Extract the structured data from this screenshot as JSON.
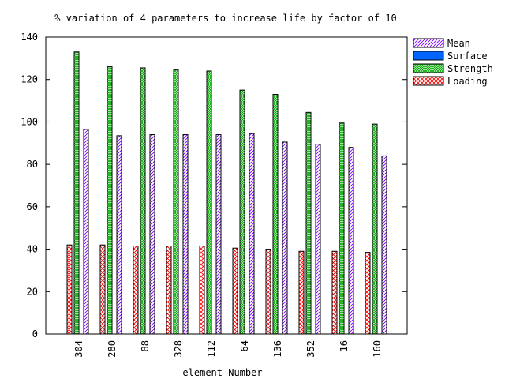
{
  "chart_data": {
    "type": "bar",
    "title": "% variation of 4 parameters to increase life by factor of 10",
    "xlabel": "element Number",
    "ylabel": "",
    "ylim": [
      0,
      140
    ],
    "yticks": [
      0,
      20,
      40,
      60,
      80,
      100,
      120,
      140
    ],
    "grid": false,
    "legend_position": "outside-right",
    "categories": [
      "304",
      "280",
      "88",
      "328",
      "112",
      "64",
      "136",
      "352",
      "16",
      "160"
    ],
    "series": [
      {
        "name": "Mean",
        "pattern": "diagonal-up",
        "color": "#7a00ff",
        "values": [
          96.5,
          93.5,
          94,
          94,
          94,
          94.5,
          90.5,
          89.5,
          88,
          84
        ]
      },
      {
        "name": "Surface",
        "pattern": "solid",
        "color": "#0066ff",
        "values": [
          0,
          0,
          0,
          0,
          0,
          0,
          0,
          0,
          0,
          0
        ]
      },
      {
        "name": "Strength",
        "pattern": "crosshatch",
        "color": "#00aa00",
        "values": [
          133,
          126,
          125.5,
          124.5,
          124,
          115,
          113,
          104.5,
          99.5,
          99
        ]
      },
      {
        "name": "Loading",
        "pattern": "cross",
        "color": "#ff0000",
        "values": [
          42,
          42,
          41.5,
          41.5,
          41.5,
          40.5,
          40,
          39,
          39,
          38.5
        ]
      }
    ],
    "series_order_in_group": [
      "Loading",
      "Strength",
      "Mean"
    ]
  }
}
